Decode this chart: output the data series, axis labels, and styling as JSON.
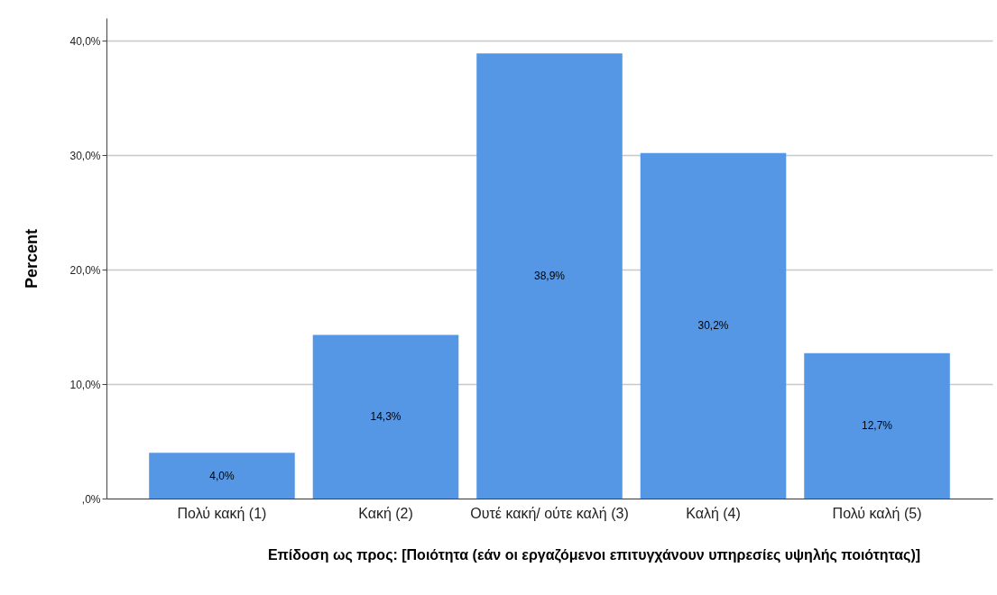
{
  "chart_data": {
    "type": "bar",
    "xlabel": "Επίδοση ως προς: [Ποιότητα (εάν οι εργαζόμενοι επιτυγχάνουν υπηρεσίες υψηλής ποιότητας)]",
    "ylabel": "Percent",
    "categories": [
      "Πολύ κακή (1)",
      "Κακή (2)",
      "Ουτέ κακή/ ούτε καλή (3)",
      "Καλή (4)",
      "Πολύ καλή (5)"
    ],
    "values": [
      4.0,
      14.3,
      38.9,
      30.2,
      12.7
    ],
    "value_labels": [
      "4,0%",
      "14,3%",
      "38,9%",
      "30,2%",
      "12,7%"
    ],
    "color": "#5596e5",
    "ylim": [
      0,
      42
    ],
    "yticks": [
      {
        "value": 0,
        "label": ",0%"
      },
      {
        "value": 10,
        "label": "10,0%"
      },
      {
        "value": 20,
        "label": "20,0%"
      },
      {
        "value": 30,
        "label": "30,0%"
      },
      {
        "value": 40,
        "label": "40,0%"
      }
    ],
    "grid": "y"
  }
}
